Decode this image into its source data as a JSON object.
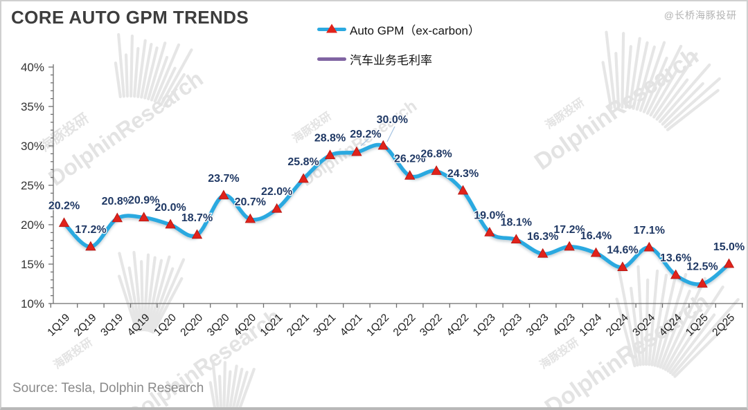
{
  "header": {
    "title": "CORE AUTO GPM TRENDS",
    "credit": "@长桥海豚投研"
  },
  "legend": {
    "items": [
      {
        "label": "Auto GPM（ex-carbon）",
        "color": "#2BA9E0",
        "marker": "red-triangle",
        "marker_color": "#E0231B"
      },
      {
        "label": "汽车业务毛利率",
        "color": "#8064A2",
        "marker": "line"
      }
    ]
  },
  "source": {
    "text": "Source: Tesla, Dolphin Research"
  },
  "watermarks": {
    "brand_en": "DolphinResearch",
    "brand_cn": "海豚投研"
  },
  "chart_data": {
    "type": "line",
    "title": "CORE AUTO GPM TRENDS",
    "categories": [
      "1Q19",
      "2Q19",
      "3Q19",
      "4Q19",
      "1Q20",
      "2Q20",
      "3Q20",
      "4Q20",
      "1Q21",
      "2Q21",
      "3Q21",
      "4Q21",
      "1Q22",
      "2Q22",
      "3Q22",
      "4Q22",
      "1Q23",
      "2Q23",
      "3Q23",
      "4Q23",
      "1Q24",
      "2Q24",
      "3Q24",
      "4Q24",
      "1Q25",
      "2Q25"
    ],
    "series": [
      {
        "name": "Auto GPM（ex-carbon）",
        "color": "#2BA9E0",
        "marker": "red-triangle",
        "marker_color": "#E0231B",
        "values": [
          20.2,
          17.2,
          20.8,
          20.9,
          20.0,
          18.7,
          23.7,
          20.7,
          22.0,
          25.8,
          28.8,
          29.2,
          30.0,
          26.2,
          26.8,
          24.3,
          19.0,
          18.1,
          16.3,
          17.2,
          16.4,
          14.6,
          17.1,
          13.6,
          12.5,
          15.0
        ]
      },
      {
        "name": "汽车业务毛利率",
        "color": "#8064A2",
        "marker": "line",
        "values": []
      }
    ],
    "xlabel": "",
    "ylabel": "",
    "ylim": [
      10,
      40
    ],
    "y_tick_step": 5,
    "y_minor_step": 1,
    "y_tick_labels": [
      "10%",
      "15%",
      "20%",
      "25%",
      "30%",
      "35%",
      "40%"
    ],
    "grid": false,
    "legend_position": "top-center",
    "data_labels": true,
    "data_label_color": "#1F3864",
    "label_offsets": {
      "11": [
        13,
        -21
      ],
      "12": [
        13,
        -33
      ]
    },
    "label_leaders": [
      [
        533,
        196,
        519,
        209
      ],
      [
        568,
        181,
        557,
        203
      ]
    ],
    "leader_color": "#A9C6E3"
  }
}
